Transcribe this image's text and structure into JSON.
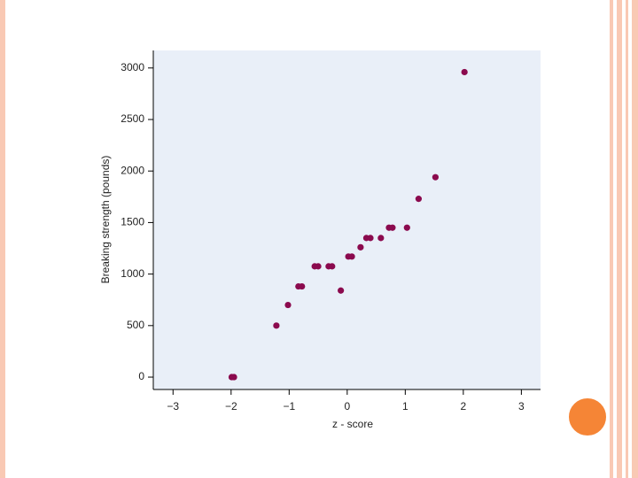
{
  "chart_data": {
    "type": "scatter",
    "x_label": "z - score",
    "y_label": "Breaking strength (pounds)",
    "color": "#8b0a4e",
    "background": "#e9eff8",
    "xlim": [
      -3.34,
      3.33
    ],
    "ylim": [
      -120,
      3170
    ],
    "xticks": [
      {
        "value": -3,
        "label": "−3"
      },
      {
        "value": -2,
        "label": "−2"
      },
      {
        "value": -1,
        "label": "−1"
      },
      0,
      1,
      2,
      3
    ],
    "yticks": [
      0,
      500,
      1000,
      1500,
      2000,
      2500,
      3000
    ],
    "x": [
      -1.99,
      -1.95,
      -1.22,
      -1.02,
      -0.84,
      -0.78,
      -0.56,
      -0.5,
      -0.32,
      -0.26,
      -0.11,
      0.02,
      0.08,
      0.23,
      0.33,
      0.4,
      0.58,
      0.72,
      0.78,
      1.03,
      1.23,
      1.52,
      2.02
    ],
    "values": [
      0,
      0,
      500,
      700,
      880,
      880,
      1075,
      1075,
      1075,
      1075,
      840,
      1170,
      1170,
      1260,
      1350,
      1350,
      1350,
      1450,
      1450,
      1450,
      1730,
      1940,
      2960
    ]
  }
}
